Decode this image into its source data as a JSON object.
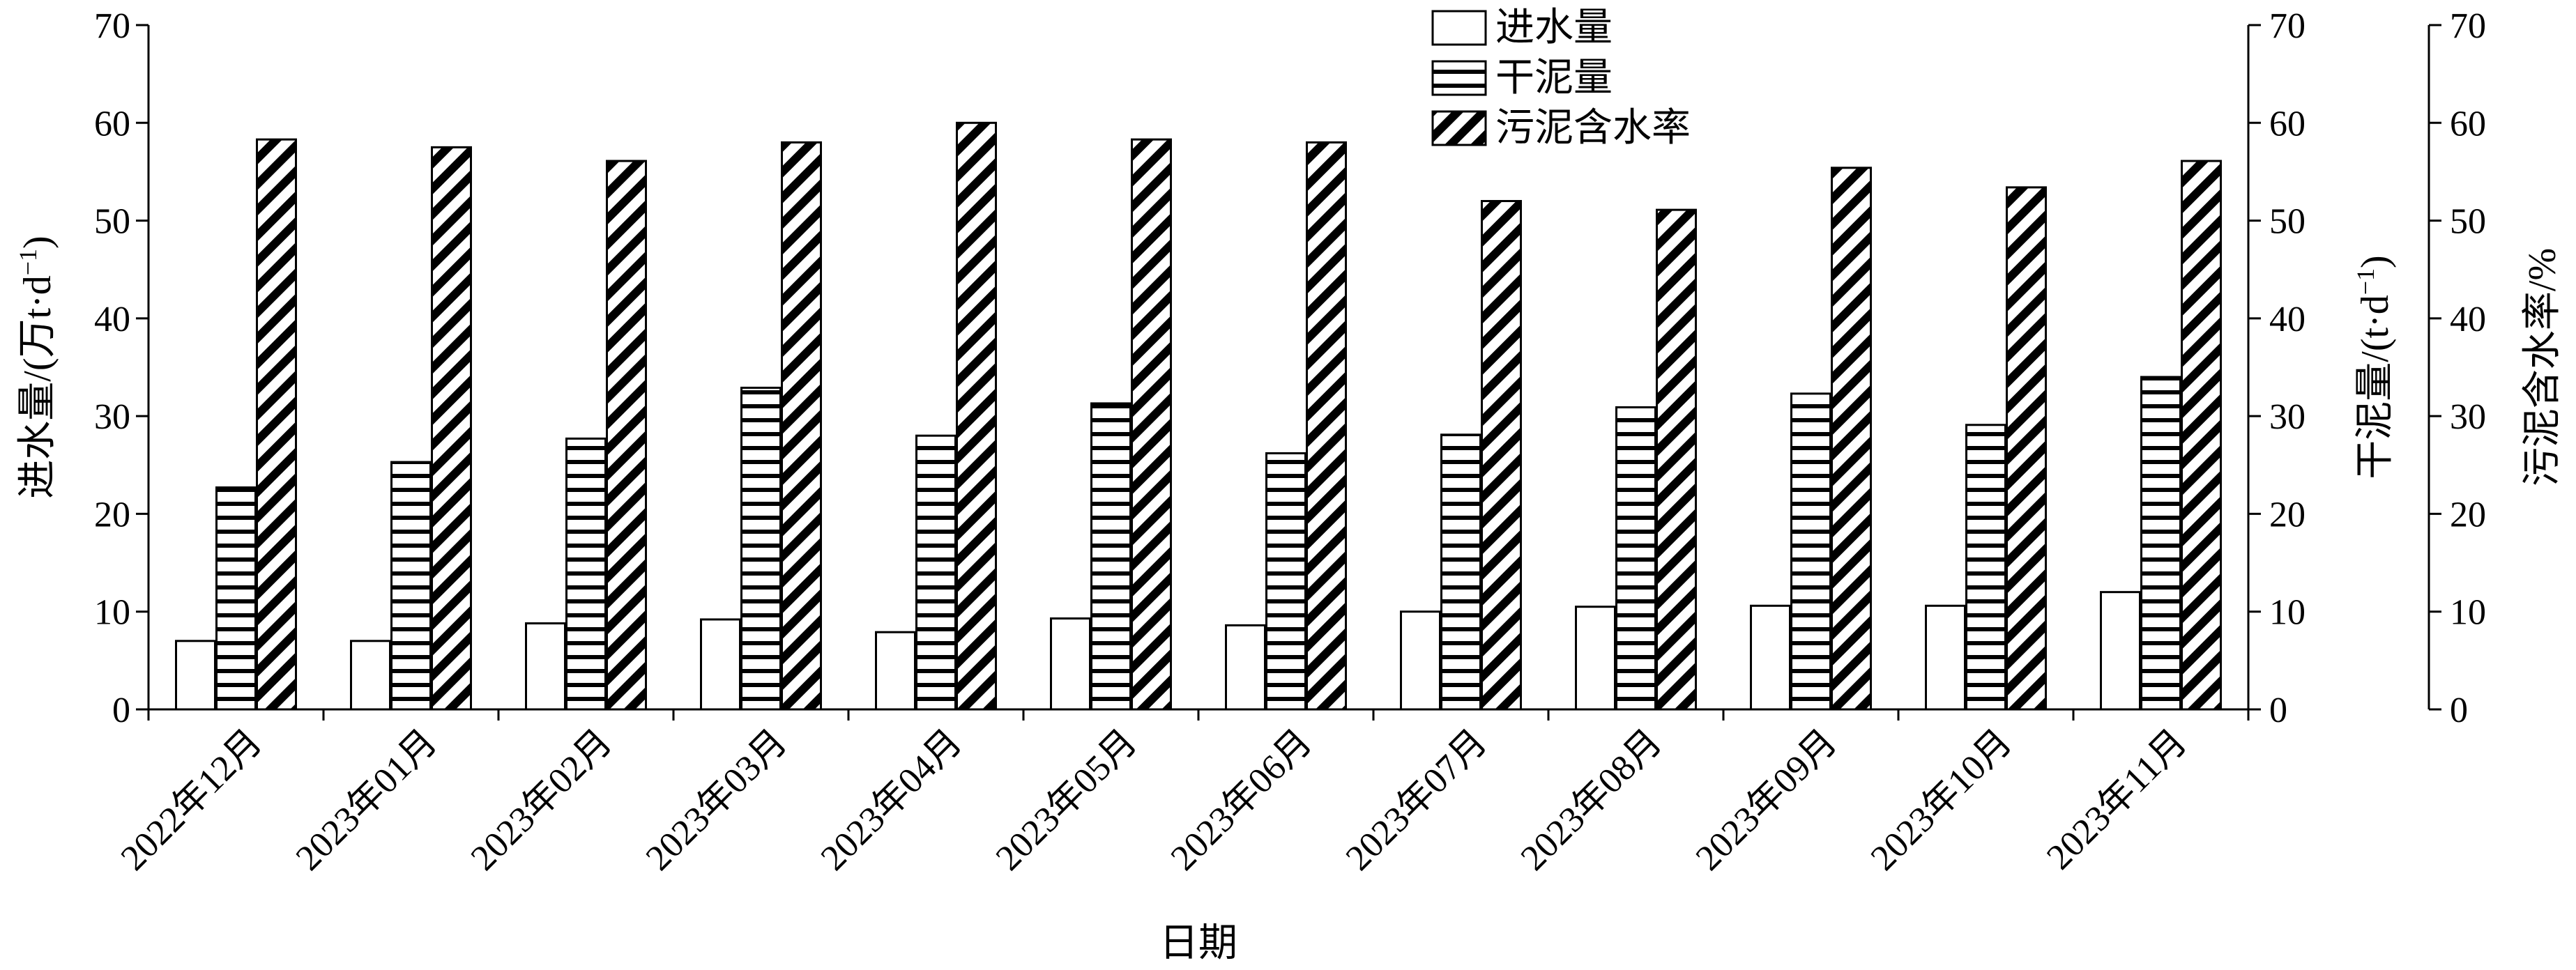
{
  "chart_data": {
    "type": "bar",
    "xlabel": "日期",
    "categories": [
      "2022年12月",
      "2023年01月",
      "2023年02月",
      "2023年03月",
      "2023年04月",
      "2023年05月",
      "2023年06月",
      "2023年07月",
      "2023年08月",
      "2023年09月",
      "2023年10月",
      "2023年11月"
    ],
    "series": [
      {
        "name": "进水量",
        "axis": "left",
        "pattern": "plain-white",
        "values": [
          7.0,
          7.0,
          8.8,
          9.2,
          7.9,
          9.3,
          8.6,
          10.0,
          10.5,
          10.6,
          10.6,
          12.0
        ]
      },
      {
        "name": "干泥量",
        "axis": "right-inner",
        "pattern": "horizontal-stripes",
        "values": [
          22.7,
          25.3,
          27.7,
          32.9,
          28.0,
          31.3,
          26.2,
          28.1,
          30.9,
          32.3,
          29.1,
          34.0
        ]
      },
      {
        "name": "污泥含水率",
        "axis": "right-outer",
        "pattern": "diagonal-stripes",
        "values": [
          58.3,
          57.5,
          56.1,
          58.0,
          60.0,
          58.3,
          58.0,
          52.0,
          51.1,
          55.4,
          53.4,
          56.1
        ]
      }
    ],
    "axes": {
      "left": {
        "label": "进水量/(万t·d",
        "label_sup": "−1",
        "label_end": ")",
        "ylim": [
          0,
          70
        ],
        "ticks": [
          "0",
          "10",
          "20",
          "30",
          "40",
          "50",
          "60",
          "70"
        ]
      },
      "right_inner": {
        "label": "干泥量/(t·d",
        "label_sup": "−1",
        "label_end": ")",
        "ylim": [
          0,
          70
        ],
        "ticks": [
          "0",
          "10",
          "20",
          "30",
          "40",
          "50",
          "60",
          "70"
        ]
      },
      "right_outer": {
        "label": "污泥含水率/%",
        "ylim": [
          0,
          70
        ],
        "ticks": [
          "0",
          "10",
          "20",
          "30",
          "40",
          "50",
          "60",
          "70"
        ]
      }
    },
    "legend": {
      "position": "top-center",
      "entries": [
        "进水量",
        "干泥量",
        "污泥含水率"
      ]
    },
    "grid": false,
    "colors": {
      "bar_fill": "#ffffff",
      "ink": "#000000"
    }
  }
}
